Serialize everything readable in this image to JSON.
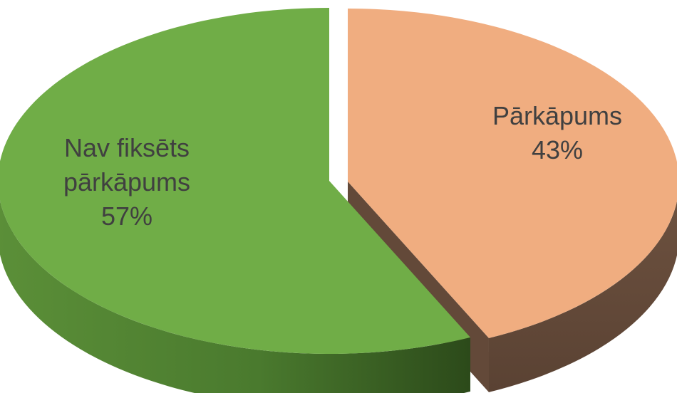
{
  "chart_data": {
    "type": "pie",
    "style": "3d-exploded",
    "slices": [
      {
        "label_lines": [
          "Pārkāpums"
        ],
        "percent_label": "43%",
        "value": 43,
        "top_color": "#f0ad80",
        "side_color": "#634939"
      },
      {
        "label_lines": [
          "Nav fiksēts",
          "pārkāpums"
        ],
        "percent_label": "57%",
        "value": 57,
        "top_color": "#70ad47",
        "side_color": "#3f6a27"
      }
    ],
    "legend": "none"
  }
}
